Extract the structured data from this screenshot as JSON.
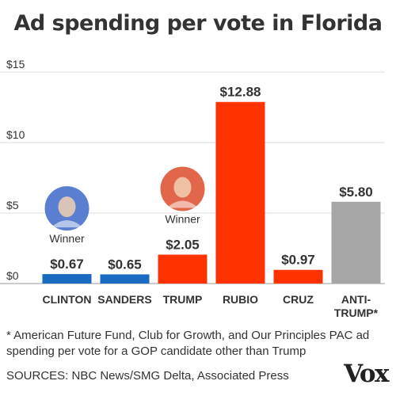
{
  "chart_data": {
    "type": "bar",
    "title": "Ad spending per vote in Florida",
    "categories": [
      "CLINTON",
      "SANDERS",
      "TRUMP",
      "RUBIO",
      "CRUZ",
      "ANTI-TRUMP*"
    ],
    "category_lines": [
      [
        "CLINTON"
      ],
      [
        "SANDERS"
      ],
      [
        "TRUMP"
      ],
      [
        "RUBIO"
      ],
      [
        "CRUZ"
      ],
      [
        "ANTI-",
        "TRUMP*"
      ]
    ],
    "values": [
      0.67,
      0.65,
      2.05,
      12.88,
      0.97,
      5.8
    ],
    "value_labels": [
      "$0.67",
      "$0.65",
      "$2.05",
      "$12.88",
      "$0.97",
      "$5.80"
    ],
    "bar_colors": [
      "#1a6ac2",
      "#1a6ac2",
      "#ff3300",
      "#ff3300",
      "#ff3300",
      "#a6a6a6"
    ],
    "ylim": [
      0,
      15
    ],
    "yticks": [
      0,
      5,
      10,
      15
    ],
    "ytick_labels": [
      "$0",
      "$5",
      "$10",
      "$15"
    ],
    "grid": true,
    "annotations": [
      {
        "category": "CLINTON",
        "text": "Winner",
        "avatar_color": "#5a7fd0",
        "avatar_name": "clinton-portrait-icon"
      },
      {
        "category": "TRUMP",
        "text": "Winner",
        "avatar_color": "#e2674a",
        "avatar_name": "trump-portrait-icon"
      }
    ]
  },
  "footnote": "* American Future Fund, Club for Growth, and Our Principles PAC ad spending per vote for a GOP candidate other than Trump",
  "sources": "SOURCES: NBC News/SMG Delta, Associated Press",
  "logo": "Vox"
}
